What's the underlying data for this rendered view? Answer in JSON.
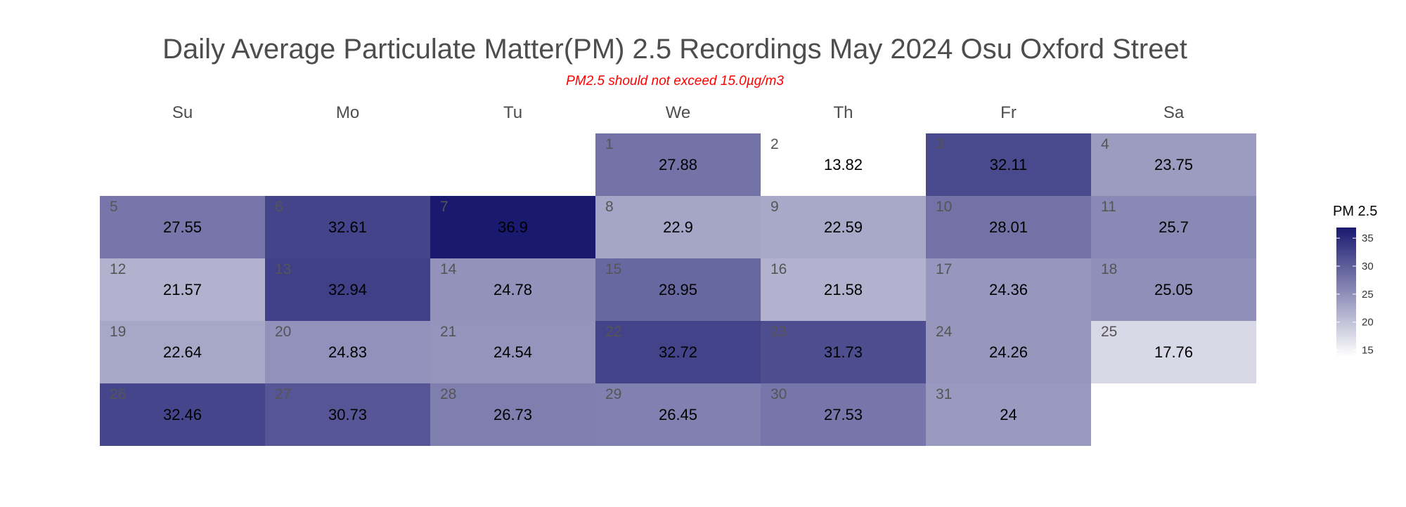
{
  "chart_data": {
    "type": "heatmap",
    "title": "Daily Average Particulate Matter(PM) 2.5 Recordings May 2024 Osu Oxford Street",
    "subtitle": "PM2.5 should not exceed 15.0µg/m3",
    "weekdays": [
      "Su",
      "Mo",
      "Tu",
      "We",
      "Th",
      "Fr",
      "Sa"
    ],
    "first_weekday_index": 3,
    "days": [
      {
        "day": "1",
        "value": 27.88,
        "label": "27.88"
      },
      {
        "day": "2",
        "value": 13.82,
        "label": "13.82"
      },
      {
        "day": "3",
        "value": 32.11,
        "label": "32.11"
      },
      {
        "day": "4",
        "value": 23.75,
        "label": "23.75"
      },
      {
        "day": "5",
        "value": 27.55,
        "label": "27.55"
      },
      {
        "day": "6",
        "value": 32.61,
        "label": "32.61"
      },
      {
        "day": "7",
        "value": 36.9,
        "label": "36.9"
      },
      {
        "day": "8",
        "value": 22.9,
        "label": "22.9"
      },
      {
        "day": "9",
        "value": 22.59,
        "label": "22.59"
      },
      {
        "day": "10",
        "value": 28.01,
        "label": "28.01"
      },
      {
        "day": "11",
        "value": 25.7,
        "label": "25.7"
      },
      {
        "day": "12",
        "value": 21.57,
        "label": "21.57"
      },
      {
        "day": "13",
        "value": 32.94,
        "label": "32.94"
      },
      {
        "day": "14",
        "value": 24.78,
        "label": "24.78"
      },
      {
        "day": "15",
        "value": 28.95,
        "label": "28.95"
      },
      {
        "day": "16",
        "value": 21.58,
        "label": "21.58"
      },
      {
        "day": "17",
        "value": 24.36,
        "label": "24.36"
      },
      {
        "day": "18",
        "value": 25.05,
        "label": "25.05"
      },
      {
        "day": "19",
        "value": 22.64,
        "label": "22.64"
      },
      {
        "day": "20",
        "value": 24.83,
        "label": "24.83"
      },
      {
        "day": "21",
        "value": 24.54,
        "label": "24.54"
      },
      {
        "day": "22",
        "value": 32.72,
        "label": "32.72"
      },
      {
        "day": "23",
        "value": 31.73,
        "label": "31.73"
      },
      {
        "day": "24",
        "value": 24.26,
        "label": "24.26"
      },
      {
        "day": "25",
        "value": 17.76,
        "label": "17.76"
      },
      {
        "day": "26",
        "value": 32.46,
        "label": "32.46"
      },
      {
        "day": "27",
        "value": 30.73,
        "label": "30.73"
      },
      {
        "day": "28",
        "value": 26.73,
        "label": "26.73"
      },
      {
        "day": "29",
        "value": 26.45,
        "label": "26.45"
      },
      {
        "day": "30",
        "value": 27.53,
        "label": "27.53"
      },
      {
        "day": "31",
        "value": 24,
        "label": "24"
      }
    ],
    "color_scale": {
      "low": "#ffffff",
      "high": "#191970",
      "min": 13.82,
      "max": 36.9
    },
    "legend": {
      "title": "PM 2.5",
      "position": "right",
      "ticks": [
        "15",
        "20",
        "25",
        "30",
        "35"
      ]
    }
  }
}
